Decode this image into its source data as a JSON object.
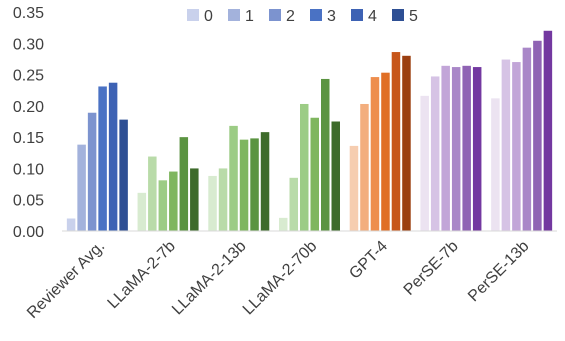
{
  "chart_data": {
    "type": "bar",
    "title": "",
    "xlabel": "",
    "ylabel": "",
    "ylim": [
      0,
      0.35
    ],
    "yticks": [
      "0.00",
      "0.05",
      "0.10",
      "0.15",
      "0.20",
      "0.25",
      "0.30",
      "0.35"
    ],
    "grid": false,
    "legend_position": "top",
    "categories": [
      "Reviewer Avg.",
      "LLaMA-2-7b",
      "LLaMA-2-13b",
      "LLaMA-2-70b",
      "GPT-4",
      "PerSE-7b",
      "PerSE-13b"
    ],
    "series": [
      {
        "name": "0",
        "values": [
          0.02,
          0.061,
          0.088,
          0.021,
          0.136,
          0.216,
          0.212
        ]
      },
      {
        "name": "1",
        "values": [
          0.138,
          0.119,
          0.1,
          0.085,
          0.203,
          0.247,
          0.274
        ]
      },
      {
        "name": "2",
        "values": [
          0.189,
          0.081,
          0.168,
          0.203,
          0.246,
          0.264,
          0.27
        ]
      },
      {
        "name": "3",
        "values": [
          0.231,
          0.095,
          0.146,
          0.181,
          0.253,
          0.262,
          0.293
        ]
      },
      {
        "name": "4",
        "values": [
          0.237,
          0.15,
          0.148,
          0.243,
          0.286,
          0.264,
          0.304
        ]
      },
      {
        "name": "5",
        "values": [
          0.178,
          0.1,
          0.158,
          0.175,
          0.28,
          0.262,
          0.32
        ]
      }
    ],
    "legend_colors": [
      "#c9d1ec",
      "#a3b2dc",
      "#7c93cf",
      "#4a72c4",
      "#3d62b4",
      "#2e4f94"
    ],
    "group_colors": [
      [
        "#c9d1ec",
        "#a3b2dc",
        "#7c93cf",
        "#4a72c4",
        "#3d62b4",
        "#2e4f94"
      ],
      [
        "#d8ebd0",
        "#b9dba9",
        "#9ccc85",
        "#7fb65f",
        "#5b9441",
        "#3d6b2a"
      ],
      [
        "#d8ebd0",
        "#b9dba9",
        "#9ccc85",
        "#7fb65f",
        "#5b9441",
        "#3d6b2a"
      ],
      [
        "#d8ebd0",
        "#b9dba9",
        "#9ccc85",
        "#7fb65f",
        "#5b9441",
        "#3d6b2a"
      ],
      [
        "#f6cdb0",
        "#f3ae7e",
        "#ee8e4e",
        "#e06f26",
        "#c7561a",
        "#9b3f10"
      ],
      [
        "#ece3f1",
        "#d6c3e5",
        "#c2a5d8",
        "#a987c8",
        "#8f63b4",
        "#7338a0"
      ],
      [
        "#ece3f1",
        "#d6c3e5",
        "#c2a5d8",
        "#a987c8",
        "#8f63b4",
        "#7338a0"
      ]
    ]
  }
}
